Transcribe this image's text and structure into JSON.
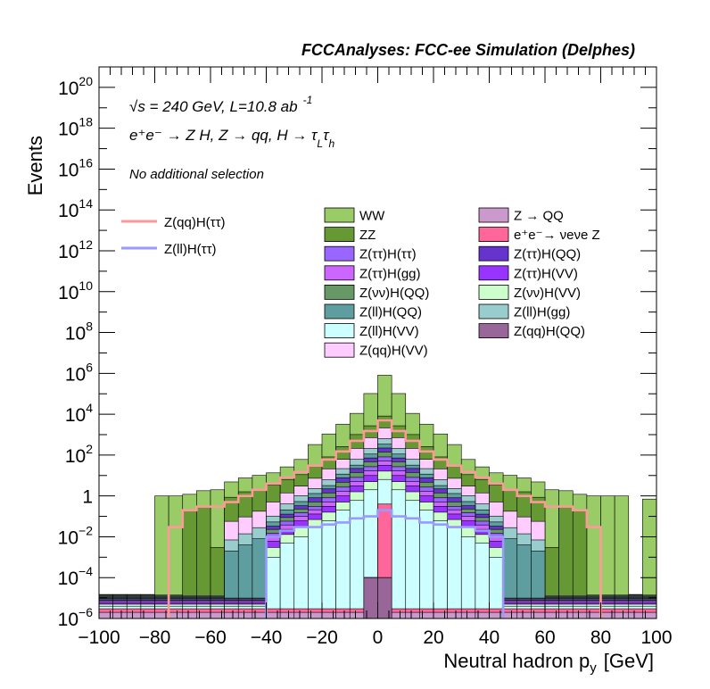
{
  "header": {
    "title": "FCCAnalyses: FCC-ee Simulation (Delphes)",
    "energy_line": "√s = 240 GeV, L=10.8 ab",
    "lumi_exponent": "-1",
    "process_line": "e⁺e⁻ → Z H, Z → qq, H → τ",
    "process_sub1": "L",
    "process_mid": "τ",
    "process_sub2": "h",
    "selection": "No additional selection"
  },
  "chart_data": {
    "type": "histogram",
    "xlabel": "Neutral hadron p",
    "xlabel_sub": "y",
    "xlabel_unit": "[GeV]",
    "ylabel": "Events",
    "xlim": [
      -100,
      100
    ],
    "ylim": [
      1e-06,
      1e+21
    ],
    "log_y": true,
    "x_ticks": [
      -100,
      -80,
      -60,
      -40,
      -20,
      0,
      20,
      40,
      60,
      80,
      100
    ],
    "x_tick_labels": [
      "−100",
      "−80",
      "−60",
      "−40",
      "−20",
      "0",
      "20",
      "40",
      "60",
      "80",
      "100"
    ],
    "y_ticks": [
      {
        "value": 1e-06,
        "base": "10",
        "exp": "−6"
      },
      {
        "value": 0.0001,
        "base": "10",
        "exp": "−4"
      },
      {
        "value": 0.01,
        "base": "10",
        "exp": "−2"
      },
      {
        "value": 1,
        "base": "1",
        "exp": ""
      },
      {
        "value": 100.0,
        "base": "10",
        "exp": "2"
      },
      {
        "value": 10000.0,
        "base": "10",
        "exp": "4"
      },
      {
        "value": 1000000.0,
        "base": "10",
        "exp": "6"
      },
      {
        "value": 100000000.0,
        "base": "10",
        "exp": "8"
      },
      {
        "value": 10000000000.0,
        "base": "10",
        "exp": "10"
      },
      {
        "value": 1000000000000.0,
        "base": "10",
        "exp": "12"
      },
      {
        "value": 100000000000000.0,
        "base": "10",
        "exp": "14"
      },
      {
        "value": 1e+16,
        "base": "10",
        "exp": "16"
      },
      {
        "value": 1e+18,
        "base": "10",
        "exp": "18"
      },
      {
        "value": 1e+20,
        "base": "10",
        "exp": "20"
      }
    ],
    "bin_edges_x": [
      -100,
      -95,
      -90,
      -85,
      -80,
      -75,
      -70,
      -65,
      -60,
      -55,
      -50,
      -45,
      -40,
      -35,
      -30,
      -25,
      -20,
      -15,
      -10,
      -5,
      0,
      5,
      10,
      15,
      20,
      25,
      30,
      35,
      40,
      45,
      50,
      55,
      60,
      65,
      70,
      75,
      80,
      85,
      90,
      95,
      100
    ],
    "stack_layers": [
      {
        "name": "WW",
        "color": "#99cc66",
        "values": [
          1e-06,
          1e-06,
          1e-06,
          1e-06,
          1,
          1,
          1,
          1.5,
          2,
          4,
          6,
          8,
          10,
          20,
          50,
          300,
          1000,
          3000,
          10000,
          100000,
          800000,
          100000,
          10000,
          3000,
          1000,
          300,
          50,
          20,
          10,
          8,
          6,
          4,
          2,
          1.5,
          1,
          1,
          1,
          1,
          1e-06,
          0.7
        ]
      },
      {
        "name": "ZZ",
        "color": "#669933",
        "values": [
          1e-06,
          1e-06,
          1e-06,
          1e-06,
          1e-06,
          1e-06,
          0.2,
          0.3,
          0.003,
          0.8,
          1.5,
          2,
          3,
          5,
          8,
          20,
          60,
          200,
          800,
          2000,
          6000,
          2000,
          800,
          200,
          60,
          20,
          8,
          5,
          3,
          2,
          1.5,
          0.8,
          0.003,
          0.3,
          0.2,
          1e-06,
          1e-06,
          1e-06,
          1e-06,
          1e-06
        ]
      },
      {
        "name": "Z(qq)H(VV)",
        "color": "#ffccff",
        "values": [
          1e-06,
          1e-06,
          1e-06,
          1e-06,
          1e-06,
          1e-06,
          1e-06,
          1e-06,
          1e-06,
          0.05,
          0.08,
          0.15,
          0.4,
          1,
          2,
          5,
          15,
          40,
          150,
          500,
          1500,
          500,
          150,
          40,
          15,
          5,
          2,
          1,
          0.4,
          0.15,
          0.08,
          0.05,
          1e-06,
          1e-06,
          1e-06,
          1e-06,
          1e-06,
          1e-06,
          1e-06,
          1e-06
        ]
      },
      {
        "name": "Z(ll)H(gg)",
        "color": "#99cccc",
        "values": [
          1e-06,
          1e-06,
          1e-06,
          1e-06,
          1e-06,
          1e-06,
          1e-06,
          1e-06,
          1e-06,
          0.005,
          0.01,
          0.02,
          0.05,
          0.2,
          0.5,
          1,
          3,
          10,
          30,
          100,
          300,
          100,
          30,
          10,
          3,
          1,
          0.5,
          0.2,
          0.05,
          0.02,
          0.01,
          0.005,
          1e-06,
          1e-06,
          1e-06,
          1e-06,
          1e-06,
          1e-06,
          1e-06,
          1e-06
        ]
      },
      {
        "name": "Z(ll)H(QQ)",
        "color": "#5f9ea0",
        "values": [
          1e-06,
          1e-06,
          1e-06,
          1e-06,
          1e-06,
          1e-06,
          1e-06,
          1e-06,
          1e-06,
          0.002,
          0.004,
          0.008,
          0.02,
          0.08,
          0.2,
          0.5,
          1,
          4,
          10,
          40,
          120,
          40,
          10,
          4,
          1,
          0.5,
          0.2,
          0.08,
          0.02,
          0.008,
          0.004,
          0.002,
          1e-06,
          1e-06,
          1e-06,
          1e-06,
          1e-06,
          1e-06,
          1e-06,
          1e-06
        ]
      },
      {
        "name": "Z(ττ)H(QQ)",
        "color": "#6633cc",
        "values": [
          1e-06,
          1e-06,
          1e-06,
          1e-06,
          1e-06,
          1e-06,
          1e-06,
          1e-06,
          1e-06,
          1e-06,
          1e-06,
          1e-06,
          0.01,
          0.04,
          0.1,
          0.3,
          0.8,
          3,
          8,
          25,
          80,
          25,
          8,
          3,
          0.8,
          0.3,
          0.1,
          0.04,
          0.01,
          1e-06,
          1e-06,
          1e-06,
          1e-06,
          1e-06,
          1e-06,
          1e-06,
          1e-06,
          1e-06,
          1e-06,
          1e-06
        ]
      },
      {
        "name": "Z(νν)H(QQ)",
        "color": "#669966",
        "values": [
          1e-06,
          1e-06,
          1e-06,
          1e-06,
          1e-06,
          1e-06,
          1e-06,
          1e-06,
          1e-06,
          1e-06,
          1e-06,
          1e-06,
          0.008,
          0.03,
          0.08,
          0.2,
          0.6,
          2,
          6,
          20,
          60,
          20,
          6,
          2,
          0.6,
          0.2,
          0.08,
          0.03,
          0.008,
          1e-06,
          1e-06,
          1e-06,
          1e-06,
          1e-06,
          1e-06,
          1e-06,
          1e-06,
          1e-06,
          1e-06,
          1e-06
        ]
      },
      {
        "name": "Z(ττ)H(ττ)",
        "color": "#9966ff",
        "values": [
          1e-06,
          1e-06,
          1e-06,
          1e-06,
          1e-06,
          1e-06,
          1e-06,
          1e-06,
          1e-06,
          1e-06,
          1e-06,
          1e-06,
          0.005,
          0.02,
          0.05,
          0.1,
          0.3,
          1,
          3,
          10,
          30,
          10,
          3,
          1,
          0.3,
          0.1,
          0.05,
          0.02,
          0.005,
          1e-06,
          1e-06,
          1e-06,
          1e-06,
          1e-06,
          1e-06,
          1e-06,
          1e-06,
          1e-06,
          1e-06,
          1e-06
        ]
      },
      {
        "name": "Z(ττ)H(gg)",
        "color": "#cc66ff",
        "values": [
          1e-06,
          1e-06,
          1e-06,
          1e-06,
          1e-06,
          1e-06,
          1e-06,
          1e-06,
          1e-06,
          1e-06,
          1e-06,
          1e-06,
          0.004,
          0.015,
          0.04,
          0.08,
          0.2,
          0.7,
          2,
          7,
          20,
          7,
          2,
          0.7,
          0.2,
          0.08,
          0.04,
          0.015,
          0.004,
          1e-06,
          1e-06,
          1e-06,
          1e-06,
          1e-06,
          1e-06,
          1e-06,
          1e-06,
          1e-06,
          1e-06,
          1e-06
        ]
      },
      {
        "name": "Z(ττ)H(VV)",
        "color": "#9933ff",
        "values": [
          1e-06,
          1e-06,
          1e-06,
          1e-06,
          1e-06,
          1e-06,
          1e-06,
          1e-06,
          1e-06,
          1e-06,
          1e-06,
          1e-06,
          0.003,
          0.01,
          0.03,
          0.06,
          0.15,
          0.5,
          1.5,
          5,
          15,
          5,
          1.5,
          0.5,
          0.15,
          0.06,
          0.03,
          0.01,
          0.003,
          1e-06,
          1e-06,
          1e-06,
          1e-06,
          1e-06,
          1e-06,
          1e-06,
          1e-06,
          1e-06,
          1e-06,
          1e-06
        ]
      },
      {
        "name": "Z(νν)H(VV)",
        "color": "#ccffcc",
        "values": [
          1e-06,
          1e-06,
          1e-06,
          1e-06,
          1e-06,
          1e-06,
          1e-06,
          1e-06,
          1e-06,
          1e-06,
          1e-06,
          1e-06,
          0.002,
          0.008,
          0.02,
          0.04,
          0.1,
          0.3,
          1,
          3,
          10,
          3,
          1,
          0.3,
          0.1,
          0.04,
          0.02,
          0.008,
          0.002,
          1e-06,
          1e-06,
          1e-06,
          1e-06,
          1e-06,
          1e-06,
          1e-06,
          1e-06,
          1e-06,
          1e-06,
          1e-06
        ]
      },
      {
        "name": "Z(ll)H(VV)",
        "color": "#ccffff",
        "values": [
          1e-06,
          1e-06,
          1e-06,
          1e-06,
          1e-06,
          1e-06,
          1e-06,
          1e-06,
          1e-06,
          1e-06,
          1e-06,
          1e-06,
          0.001,
          0.005,
          0.01,
          0.03,
          0.06,
          0.2,
          0.6,
          2,
          6,
          2,
          0.6,
          0.2,
          0.06,
          0.03,
          0.01,
          0.005,
          0.001,
          1e-06,
          1e-06,
          1e-06,
          1e-06,
          1e-06,
          1e-06,
          1e-06,
          1e-06,
          1e-06,
          1e-06,
          1e-06
        ]
      },
      {
        "name": "e⁺e⁻→ νeνe Z",
        "color": "#ff6699",
        "values": [
          1e-06,
          1e-06,
          1e-06,
          1e-06,
          1e-06,
          1e-06,
          1e-06,
          1e-06,
          1e-06,
          1e-06,
          1e-06,
          1e-06,
          1e-06,
          1e-06,
          1e-06,
          1e-06,
          1e-06,
          1e-06,
          1e-06,
          1e-06,
          0.4,
          1e-06,
          1e-06,
          1e-06,
          1e-06,
          1e-06,
          1e-06,
          1e-06,
          1e-06,
          1e-06,
          1e-06,
          1e-06,
          1e-06,
          1e-06,
          1e-06,
          1e-06,
          1e-06,
          1e-06,
          1e-06,
          1e-06
        ]
      },
      {
        "name": "Z → QQ",
        "color": "#cc99cc",
        "values": [
          1e-06,
          1e-06,
          1e-06,
          1e-06,
          1e-06,
          1e-06,
          1e-06,
          1e-06,
          1e-06,
          1e-06,
          1e-06,
          1e-06,
          1e-06,
          1e-06,
          1e-06,
          1e-06,
          1e-06,
          1e-06,
          1e-06,
          1e-06,
          1e-06,
          1e-06,
          1e-06,
          1e-06,
          1e-06,
          1e-06,
          1e-06,
          1e-06,
          1e-06,
          1e-06,
          1e-06,
          1e-06,
          1e-06,
          1e-06,
          1e-06,
          1e-06,
          1e-06,
          1e-06,
          1e-06,
          1e-06
        ]
      },
      {
        "name": "Z(qq)H(QQ)",
        "color": "#996699",
        "values": [
          1e-06,
          1e-06,
          1e-06,
          1e-06,
          1e-06,
          1e-06,
          1e-06,
          1e-06,
          1e-06,
          1e-06,
          1e-06,
          1e-06,
          1e-06,
          1e-06,
          1e-06,
          1e-06,
          1e-06,
          1e-06,
          1e-06,
          0.0001,
          0.0001,
          1e-06,
          1e-06,
          1e-06,
          1e-06,
          1e-06,
          1e-06,
          1e-06,
          1e-06,
          1e-06,
          1e-06,
          1e-06,
          1e-06,
          1e-06,
          1e-06,
          1e-06,
          1e-06,
          1e-06,
          1e-06,
          1e-06
        ]
      }
    ],
    "signal_lines": [
      {
        "name": "Z(qq)H(ττ)",
        "color": "#ff9999",
        "values": [
          1e-06,
          1e-06,
          1e-06,
          1e-06,
          1e-06,
          0.03,
          0.2,
          0.3,
          0.3,
          0.5,
          1,
          2,
          4,
          8,
          15,
          30,
          60,
          150,
          500,
          1500,
          5000,
          1500,
          500,
          150,
          60,
          30,
          15,
          8,
          4,
          2,
          1,
          0.5,
          0.3,
          0.3,
          0.2,
          0.03,
          1e-06,
          1e-06,
          1e-06,
          1e-06
        ]
      },
      {
        "name": "Z(ll)H(ττ)",
        "color": "#9999ff",
        "values": [
          1e-06,
          1e-06,
          1e-06,
          1e-06,
          1e-06,
          1e-06,
          1e-06,
          1e-06,
          1e-06,
          1e-06,
          1e-06,
          1e-06,
          0.01,
          0.02,
          0.03,
          0.03,
          0.04,
          0.05,
          0.08,
          0.1,
          0.2,
          0.1,
          0.08,
          0.05,
          0.04,
          0.03,
          0.03,
          0.02,
          0.01,
          1e-06,
          1e-06,
          1e-06,
          1e-06,
          1e-06,
          1e-06,
          1e-06,
          1e-06,
          1e-06,
          1e-06,
          1e-06
        ]
      }
    ],
    "legend_left": [
      {
        "name": "Z(qq)H(ττ)",
        "color": "#ff9999"
      },
      {
        "name": "Z(ll)H(ττ)",
        "color": "#9999ff"
      }
    ],
    "legend_col1": [
      {
        "name": "WW",
        "color": "#99cc66"
      },
      {
        "name": "ZZ",
        "color": "#669933"
      },
      {
        "name": "Z(ττ)H(ττ)",
        "color": "#9966ff"
      },
      {
        "name": "Z(ττ)H(gg)",
        "color": "#cc66ff"
      },
      {
        "name": "Z(νν)H(QQ)",
        "color": "#669966"
      },
      {
        "name": "Z(ll)H(QQ)",
        "color": "#5f9ea0"
      },
      {
        "name": "Z(ll)H(VV)",
        "color": "#ccffff"
      },
      {
        "name": "Z(qq)H(VV)",
        "color": "#ffccff"
      }
    ],
    "legend_col2": [
      {
        "name": "Z → QQ",
        "color": "#cc99cc"
      },
      {
        "name": "e⁺e⁻→ νeνe Z",
        "color": "#ff6699"
      },
      {
        "name": "Z(ττ)H(QQ)",
        "color": "#6633cc"
      },
      {
        "name": "Z(ττ)H(VV)",
        "color": "#9933ff"
      },
      {
        "name": "Z(νν)H(VV)",
        "color": "#ccffcc"
      },
      {
        "name": "Z(ll)H(gg)",
        "color": "#99cccc"
      },
      {
        "name": "Z(qq)H(QQ)",
        "color": "#996699"
      }
    ]
  }
}
